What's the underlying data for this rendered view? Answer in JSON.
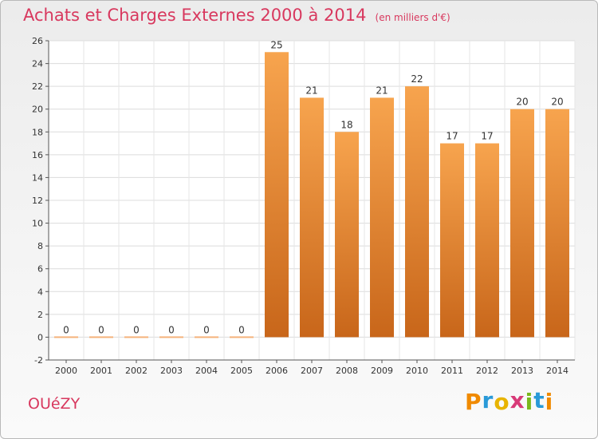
{
  "page": {
    "commune": "OUéZY",
    "logo": {
      "letters": [
        "P",
        "r",
        "o",
        "x",
        "i",
        "t",
        "i"
      ],
      "colors": [
        "#f08a00",
        "#2a9ad8",
        "#e8b400",
        "#d83a78",
        "#7ab81c",
        "#2a9ad8",
        "#f08a00"
      ]
    }
  },
  "chart_data": {
    "type": "bar",
    "title": "Achats et Charges Externes 2000 à 2014",
    "subtitle": "(en milliers d'€)",
    "categories": [
      "2000",
      "2001",
      "2002",
      "2003",
      "2004",
      "2005",
      "2006",
      "2007",
      "2008",
      "2009",
      "2010",
      "2011",
      "2012",
      "2013",
      "2014"
    ],
    "values": [
      0,
      0,
      0,
      0,
      0,
      0,
      25,
      21,
      18,
      21,
      22,
      17,
      17,
      20,
      20
    ],
    "data_labels": [
      "0",
      "0",
      "0",
      "0",
      "0",
      "0",
      "25",
      "21",
      "18",
      "21",
      "22",
      "17",
      "17",
      "20",
      "20"
    ],
    "ylim": [
      -2,
      26
    ],
    "yticks": [
      -2,
      0,
      2,
      4,
      6,
      8,
      10,
      12,
      14,
      16,
      18,
      20,
      22,
      24,
      26
    ],
    "grid": true,
    "colors": {
      "bar_top": "#f7a44e",
      "bar_bottom": "#c8661a",
      "zero_bar": "#f5b27a"
    }
  }
}
